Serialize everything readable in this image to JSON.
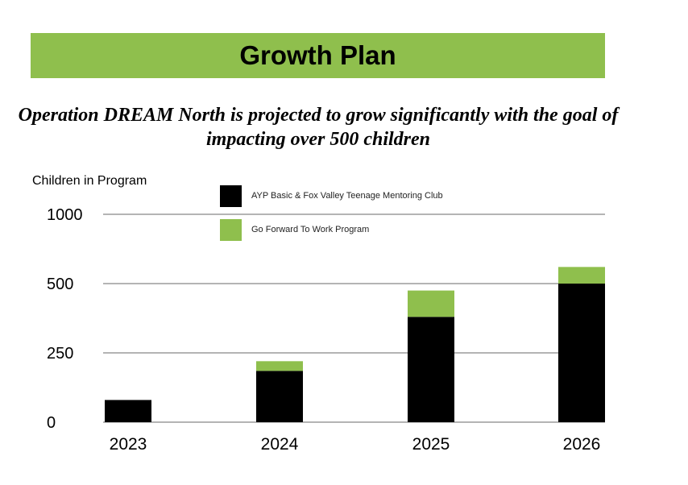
{
  "header": {
    "title": "Growth Plan"
  },
  "subtitle": "Operation DREAM North is projected to grow significantly with the goal of impacting over 500 children",
  "colors": {
    "banner": "#8fbf4d",
    "series1": "#000000",
    "series2": "#8fbf4d",
    "grid": "#888888"
  },
  "chart_data": {
    "type": "bar",
    "stacked": true,
    "title": "",
    "ylabel": "Children in Program",
    "xlabel": "",
    "categories": [
      "2023",
      "2024",
      "2025",
      "2026"
    ],
    "series": [
      {
        "name": "AYP Basic & Fox Valley Teenage Mentoring Club",
        "values": [
          80,
          185,
          380,
          500
        ]
      },
      {
        "name": "Go Forward To Work Program",
        "values": [
          0,
          35,
          95,
          60
        ]
      }
    ],
    "yticks": [
      0,
      250,
      500,
      1000
    ],
    "ytick_labels": [
      "0",
      "250",
      "500",
      "1000"
    ],
    "grid": true,
    "legend": "top-center"
  }
}
